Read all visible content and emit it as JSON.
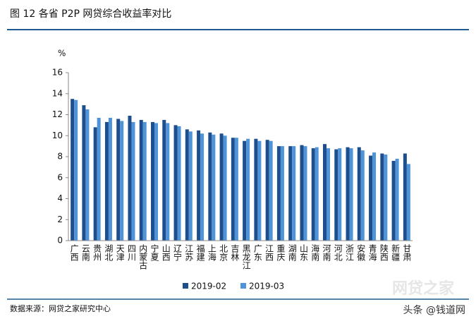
{
  "chart_data": {
    "type": "bar",
    "title": "图 12   各省 P2P 网贷综合收益率对比",
    "y_label": "%",
    "categories": [
      "广西",
      "云南",
      "贵州",
      "湖北",
      "天津",
      "四川",
      "内蒙古",
      "宁夏",
      "山西",
      "辽宁",
      "江苏",
      "福建",
      "上海",
      "北京",
      "吉林",
      "黑龙江",
      "广东",
      "江西",
      "重庆",
      "湖南",
      "山东",
      "海南",
      "河南",
      "河北",
      "浙江",
      "安徽",
      "青海",
      "陕西",
      "新疆",
      "甘肃"
    ],
    "series": [
      {
        "name": "2019-02",
        "color": "#1f4e8c",
        "values": [
          13.5,
          12.9,
          10.8,
          11.3,
          11.6,
          11.9,
          11.5,
          11.3,
          11.5,
          11.0,
          10.6,
          10.5,
          10.3,
          10.2,
          9.8,
          9.5,
          9.7,
          9.6,
          9.0,
          9.0,
          9.1,
          8.8,
          9.2,
          8.7,
          8.9,
          8.9,
          8.1,
          8.3,
          7.6,
          8.3
        ]
      },
      {
        "name": "2019-03",
        "color": "#4f94d8",
        "values": [
          13.4,
          12.5,
          11.7,
          11.7,
          11.4,
          11.3,
          11.3,
          11.2,
          11.2,
          10.9,
          10.4,
          10.2,
          10.1,
          10.0,
          9.8,
          9.7,
          9.5,
          9.5,
          9.0,
          9.0,
          9.0,
          8.9,
          8.8,
          8.8,
          8.8,
          8.6,
          8.4,
          8.2,
          7.8,
          7.3
        ]
      }
    ],
    "ylim": [
      0,
      16
    ],
    "yticks": [
      0,
      2,
      4,
      6,
      8,
      10,
      12,
      14,
      16
    ],
    "grid": false
  },
  "source": "数据来源：网贷之家研究中心",
  "watermark": "头条 @钱道网",
  "watermark_logo": "网贷之家"
}
